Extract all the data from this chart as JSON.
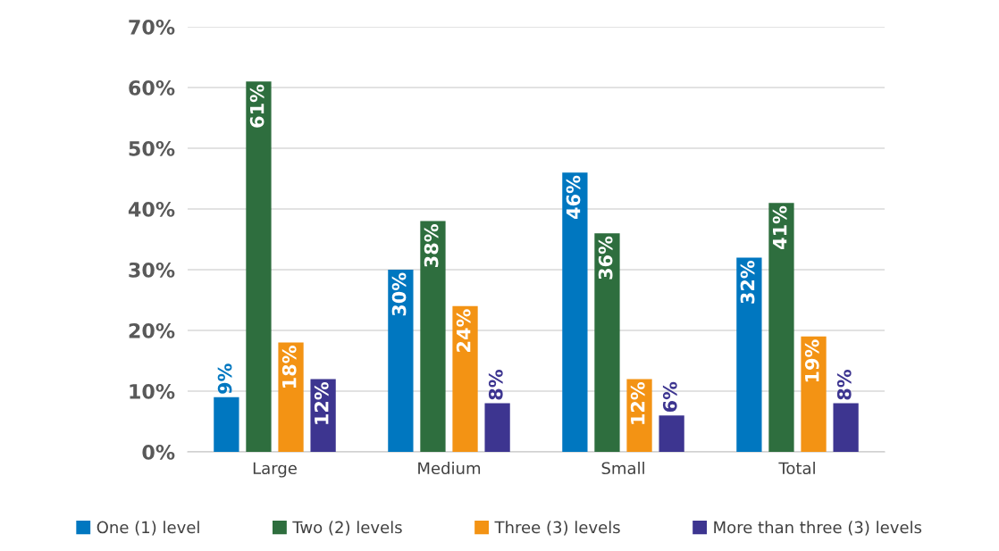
{
  "chart_data": {
    "type": "bar",
    "categories": [
      "Large",
      "Medium",
      "Small",
      "Total"
    ],
    "series": [
      {
        "name": "One (1) level",
        "color": "#0077c0",
        "values": [
          9,
          30,
          46,
          32
        ],
        "value_labels": [
          "9%",
          "30%",
          "46%",
          "32%"
        ]
      },
      {
        "name": "Two (2) levels",
        "color": "#2e6e3e",
        "values": [
          61,
          38,
          36,
          41
        ],
        "value_labels": [
          "61%",
          "38%",
          "36%",
          "41%"
        ]
      },
      {
        "name": "Three (3) levels",
        "color": "#f39314",
        "values": [
          18,
          24,
          12,
          19
        ],
        "value_labels": [
          "18%",
          "24%",
          "12%",
          "19%"
        ]
      },
      {
        "name": "More than three (3) levels",
        "color": "#3d3590",
        "values": [
          12,
          8,
          6,
          8
        ],
        "value_labels": [
          "12%",
          "8%",
          "6%",
          "8%"
        ]
      }
    ],
    "ylim": [
      0,
      70
    ],
    "yticks": [
      {
        "value": 0,
        "label": "0%"
      },
      {
        "value": 10,
        "label": "10%"
      },
      {
        "value": 20,
        "label": "20%"
      },
      {
        "value": 30,
        "label": "30%"
      },
      {
        "value": 40,
        "label": "40%"
      },
      {
        "value": 50,
        "label": "50%"
      },
      {
        "value": 60,
        "label": "60%"
      },
      {
        "value": 70,
        "label": "70%"
      }
    ],
    "grid": "y",
    "legend": "bottom"
  }
}
